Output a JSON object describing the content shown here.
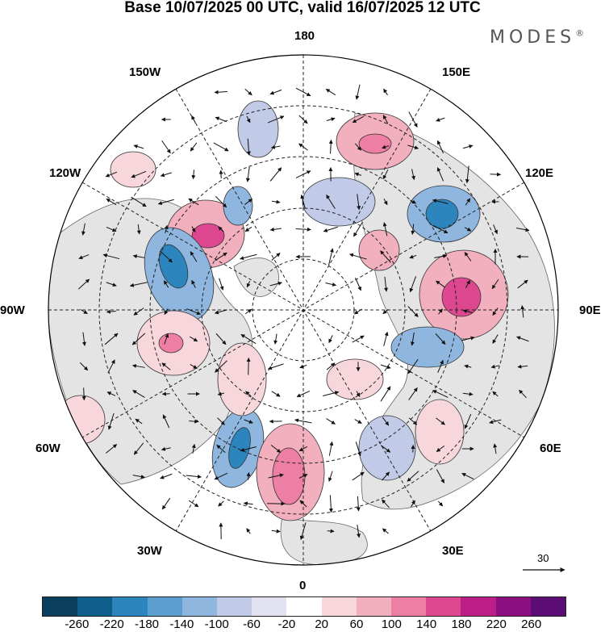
{
  "title": "Base 10/07/2025 00 UTC, valid 16/07/2025 12 UTC",
  "brand": "MODES",
  "brand_mark": "®",
  "longitude_labels": {
    "top": "180",
    "top_left": "150W",
    "top_right": "150E",
    "upper_left": "120W",
    "upper_right": "120E",
    "left": "90W",
    "right": "90E",
    "lower_left": "60W",
    "lower_right": "60E",
    "bottom_left": "30W",
    "bottom_right": "30E",
    "bottom": "0"
  },
  "reference_vector": "30",
  "colorbar": {
    "ticks": [
      "-260",
      "-220",
      "-180",
      "-140",
      "-100",
      "-60",
      "-20",
      "20",
      "60",
      "100",
      "140",
      "180",
      "220",
      "260"
    ],
    "colors": [
      "#0b3f5e",
      "#0f5f8c",
      "#2c86bd",
      "#5a9fcf",
      "#8fb6de",
      "#c1cae6",
      "#e1e1f0",
      "#ffffff",
      "#f7d7dc",
      "#f2afbe",
      "#ec7fa3",
      "#dd4790",
      "#bd1d86",
      "#8c0f7f",
      "#5b0c75"
    ]
  },
  "background_colors": {
    "land": "#e4e4e4",
    "ocean": "#ffffff"
  }
}
